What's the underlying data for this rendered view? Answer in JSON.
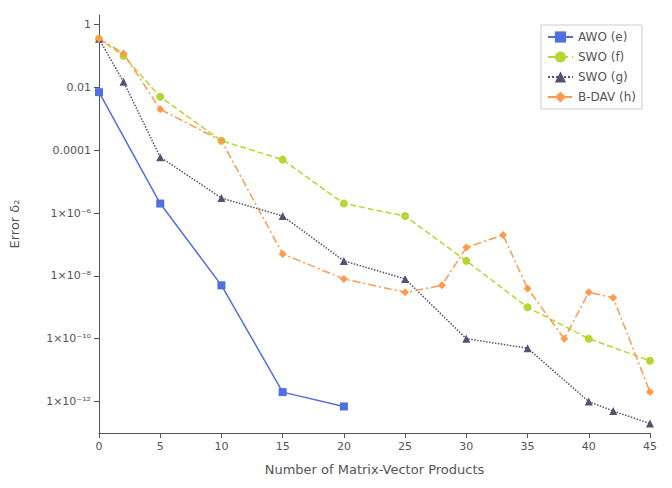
{
  "chart_data": {
    "type": "line",
    "xlabel": "Number of Matrix-Vector Products",
    "ylabel": "Error δ₂",
    "log": "y",
    "grid": false,
    "legend": "upper right",
    "xlim": [
      0,
      45
    ],
    "ylim": [
      1e-13,
      2
    ],
    "xticks": [
      0,
      5,
      10,
      15,
      20,
      25,
      30,
      35,
      40,
      45
    ],
    "yticks": [
      1,
      0.01,
      0.0001,
      {
        "value": 1e-06,
        "label": "1×10⁻⁶"
      },
      {
        "value": 1e-08,
        "label": "1×10⁻⁸"
      },
      {
        "value": 1e-10,
        "label": "1×10⁻¹⁰"
      },
      {
        "value": 1e-12,
        "label": "1×10⁻¹²"
      }
    ],
    "series": [
      {
        "name": "AWO (e)",
        "marker": "square",
        "line_style": "solid",
        "x": [
          0,
          5,
          10,
          15,
          20
        ],
        "values": [
          0.007,
          2e-06,
          5e-09,
          2e-12,
          7e-13
        ]
      },
      {
        "name": "SWO (f)",
        "marker": "circle",
        "line_style": "dashed",
        "x": [
          0,
          2,
          5,
          10,
          15,
          20,
          25,
          30,
          35,
          40,
          45
        ],
        "values": [
          0.35,
          0.1,
          0.005,
          0.0002,
          5e-05,
          2e-06,
          8e-07,
          3e-08,
          1e-09,
          1e-10,
          2e-11
        ]
      },
      {
        "name": "SWO (g)",
        "marker": "triangle",
        "line_style": "dotted",
        "x": [
          0,
          2,
          5,
          10,
          15,
          20,
          25,
          30,
          35,
          40,
          42,
          45
        ],
        "values": [
          0.35,
          0.015,
          6e-05,
          3e-06,
          8e-07,
          3e-08,
          8e-09,
          1e-10,
          5e-11,
          1e-12,
          5e-13,
          2e-13
        ]
      },
      {
        "name": "B-DAV (h)",
        "marker": "diamond",
        "line_style": "dashdot",
        "x": [
          0,
          2,
          5,
          10,
          15,
          20,
          25,
          28,
          30,
          33,
          35,
          38,
          40,
          42,
          45
        ],
        "values": [
          0.35,
          0.12,
          0.002,
          0.0002,
          5e-08,
          8e-09,
          3e-09,
          5e-09,
          8e-08,
          2e-07,
          4e-09,
          1e-10,
          3e-09,
          2e-09,
          2e-12
        ]
      }
    ]
  }
}
